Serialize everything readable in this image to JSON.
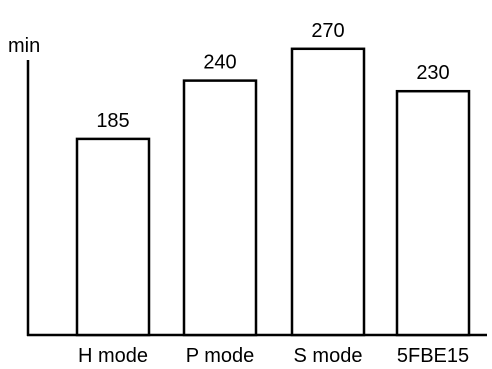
{
  "chart_data": {
    "type": "bar",
    "ylabel": "min",
    "xlabel": "",
    "title": "",
    "categories": [
      "H mode",
      "P mode",
      "S mode",
      "5FBE15"
    ],
    "values": [
      185,
      240,
      270,
      230
    ],
    "data_labels": [
      "185",
      "240",
      "270",
      "230"
    ],
    "ylim": [
      0,
      290
    ],
    "grid": false,
    "legend": "none",
    "bar_fill": "#ffffff",
    "bar_stroke": "#000000"
  }
}
